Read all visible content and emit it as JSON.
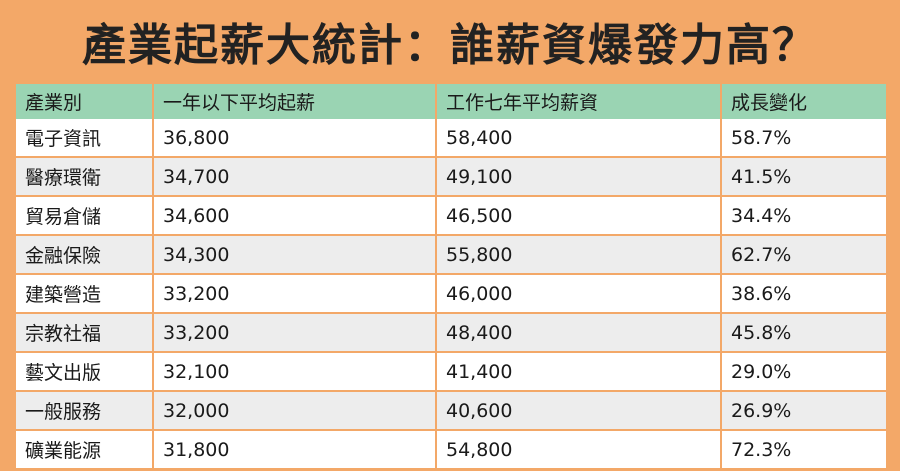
{
  "title": "產業起薪大統計：誰薪資爆發力高？",
  "chart_data": {
    "type": "table",
    "columns": [
      "產業別",
      "一年以下平均起薪",
      "工作七年平均薪資",
      "成長變化"
    ],
    "rows": [
      [
        "電子資訊",
        "36,800",
        "58,400",
        "58.7%"
      ],
      [
        "醫療環衛",
        "34,700",
        "49,100",
        "41.5%"
      ],
      [
        "貿易倉儲",
        "34,600",
        "46,500",
        "34.4%"
      ],
      [
        "金融保險",
        "34,300",
        "55,800",
        "62.7%"
      ],
      [
        "建築營造",
        "33,200",
        "46,000",
        "38.6%"
      ],
      [
        "宗教社福",
        "33,200",
        "48,400",
        "45.8%"
      ],
      [
        "藝文出版",
        "32,100",
        "41,400",
        "29.0%"
      ],
      [
        "一般服務",
        "32,000",
        "40,600",
        "26.9%"
      ],
      [
        "礦業能源",
        "31,800",
        "54,800",
        "72.3%"
      ]
    ]
  },
  "colors": {
    "background": "#F3A868",
    "header": "#9AD4B3",
    "row_odd": "#FFFFFF",
    "row_even": "#EDEDED"
  }
}
